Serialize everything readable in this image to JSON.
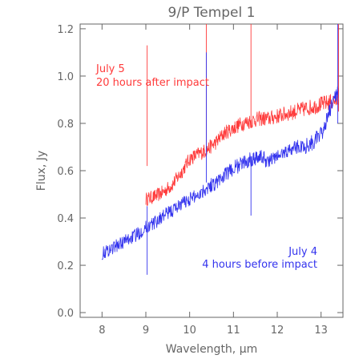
{
  "chart_data": {
    "type": "line",
    "title": "9/P Tempel 1",
    "xlabel": "Wavelength, μm",
    "ylabel": "Flux, Jy",
    "xlim": [
      7.5,
      13.5
    ],
    "ylim": [
      -0.02,
      1.22
    ],
    "xticks": [
      8,
      9,
      10,
      11,
      12,
      13
    ],
    "yticks": [
      0.0,
      0.2,
      0.4,
      0.6,
      0.8,
      1.0,
      1.2
    ],
    "ytick_labels": [
      "0.0",
      "0.2",
      "0.4",
      "0.6",
      "0.8",
      "1.0",
      "1.2"
    ],
    "grid": false,
    "series": [
      {
        "color": "#ff3b3b",
        "x": [
          9.0,
          9.2,
          9.4,
          9.6,
          9.8,
          10.0,
          10.2,
          10.4,
          10.6,
          10.8,
          11.0,
          11.2,
          11.4,
          11.6,
          11.8,
          12.0,
          12.2,
          12.4,
          12.6,
          12.8,
          13.0,
          13.2,
          13.4
        ],
        "y": [
          0.48,
          0.49,
          0.51,
          0.54,
          0.59,
          0.65,
          0.67,
          0.69,
          0.72,
          0.76,
          0.78,
          0.8,
          0.81,
          0.82,
          0.82,
          0.83,
          0.84,
          0.85,
          0.86,
          0.87,
          0.88,
          0.89,
          0.9
        ]
      },
      {
        "color": "#3333ee",
        "x": [
          8.0,
          8.2,
          8.4,
          8.6,
          8.8,
          9.0,
          9.2,
          9.4,
          9.6,
          9.8,
          10.0,
          10.2,
          10.4,
          10.6,
          10.8,
          11.0,
          11.2,
          11.4,
          11.6,
          11.8,
          12.0,
          12.2,
          12.4,
          12.6,
          12.8,
          13.0,
          13.2,
          13.4
        ],
        "y": [
          0.25,
          0.27,
          0.29,
          0.31,
          0.33,
          0.36,
          0.38,
          0.41,
          0.43,
          0.46,
          0.48,
          0.5,
          0.53,
          0.55,
          0.58,
          0.61,
          0.63,
          0.65,
          0.66,
          0.64,
          0.66,
          0.68,
          0.7,
          0.7,
          0.72,
          0.75,
          0.85,
          0.95
        ]
      }
    ],
    "spikes": [
      {
        "color": "#ff3b3b",
        "x": 9.03,
        "y0": 0.62,
        "y1": 1.13
      },
      {
        "color": "#3333ee",
        "x": 9.03,
        "y0": 0.16,
        "y1": 0.45
      },
      {
        "color": "#ff3b3b",
        "x": 10.38,
        "y0": 0.68,
        "y1": 1.22
      },
      {
        "color": "#3333ee",
        "x": 10.38,
        "y0": 0.55,
        "y1": 1.1
      },
      {
        "color": "#ff3b3b",
        "x": 11.4,
        "y0": 0.78,
        "y1": 1.22
      },
      {
        "color": "#3333ee",
        "x": 11.4,
        "y0": 0.41,
        "y1": 0.66
      },
      {
        "color": "#ff3b3b",
        "x": 13.4,
        "y0": 0.85,
        "y1": 1.22
      },
      {
        "color": "#3333ee",
        "x": 13.38,
        "y0": 0.8,
        "y1": 1.22
      }
    ],
    "annotations": [
      {
        "text": "July 5",
        "color": "#ff3b3b",
        "anchor": "start"
      },
      {
        "text": "20 hours after impact",
        "color": "#ff3b3b",
        "anchor": "start"
      },
      {
        "text": "July 4",
        "color": "#3333ee",
        "anchor": "end"
      },
      {
        "text": "4 hours before impact",
        "color": "#3333ee",
        "anchor": "end"
      }
    ]
  }
}
